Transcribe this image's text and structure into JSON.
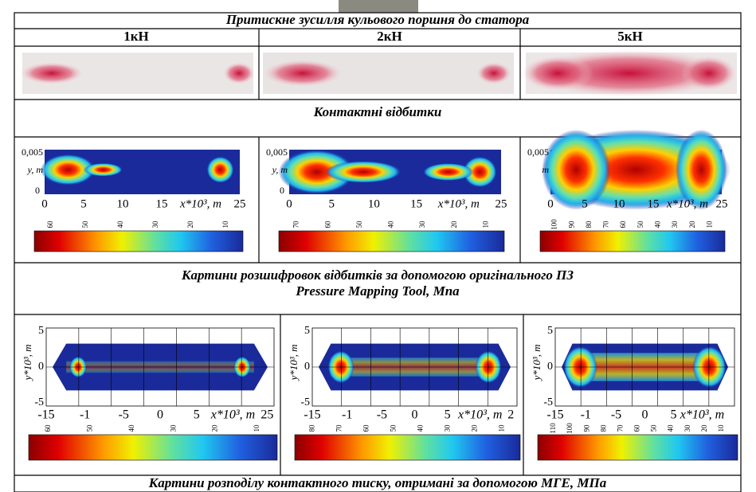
{
  "header": {
    "title": "Притискне зусилля кульового поршня до статора"
  },
  "columns": [
    "1кН",
    "2кН",
    "5кН"
  ],
  "captions": [
    [
      "Контактні відбитки"
    ],
    [
      "Картини розшифровок відбитків за допомогою оригінального ПЗ",
      "Pressure Mapping Tool, Мпа"
    ],
    [
      "Картини розподілу контактного тиску, отримані  за допомогою МГЕ, МПа"
    ]
  ],
  "decoded": [
    {
      "y_label": "y, m",
      "y_ticks": [
        "0,005",
        "0"
      ],
      "x_ticks": [
        "0",
        "5",
        "10",
        "15",
        "25"
      ],
      "x_label": "x*10³, m",
      "colorbar_ticks": [
        "60",
        "50",
        "40",
        "30",
        "20",
        "10"
      ]
    },
    {
      "y_label": "y, m",
      "y_ticks": [
        "0,005",
        "0"
      ],
      "x_ticks": [
        "0",
        "5",
        "10",
        "15",
        "25"
      ],
      "x_label": "x*10³, m",
      "colorbar_ticks": [
        "70",
        "60",
        "50",
        "40",
        "30",
        "20",
        "10"
      ]
    },
    {
      "y_label": "m",
      "y_ticks": [
        "0,005"
      ],
      "x_ticks": [
        "0",
        "5",
        "10",
        "15",
        "25"
      ],
      "x_label": "x*10³, m",
      "colorbar_ticks": [
        "100",
        "90",
        "80",
        "70",
        "60",
        "50",
        "40",
        "30",
        "20",
        "10"
      ]
    }
  ],
  "fem": [
    {
      "y_label": "y*10³, m",
      "y_ticks": [
        "5",
        "0",
        "-5"
      ],
      "x_ticks": [
        "-15",
        "-1",
        "-5",
        "0",
        "5",
        "25"
      ],
      "x_label": "x*10³, m",
      "colorbar_ticks": [
        "60",
        "50",
        "40",
        "30",
        "20",
        "10"
      ]
    },
    {
      "y_label": "y*10³, m",
      "y_ticks": [
        "5",
        "0",
        "-5"
      ],
      "x_ticks": [
        "-15",
        "-1",
        "-5",
        "0",
        "5",
        "2"
      ],
      "x_label": "x*10³, m",
      "colorbar_ticks": [
        "80",
        "70",
        "60",
        "50",
        "40",
        "30",
        "20",
        "10"
      ]
    },
    {
      "y_label": "y*10³, m",
      "y_ticks": [
        "5",
        "0",
        "-5"
      ],
      "x_ticks": [
        "-15",
        "-1",
        "-5",
        "0",
        "5"
      ],
      "x_label": "x*10³, m",
      "colorbar_ticks": [
        "110",
        "100",
        "90",
        "80",
        "70",
        "60",
        "50",
        "40",
        "30",
        "20",
        "10"
      ]
    }
  ]
}
